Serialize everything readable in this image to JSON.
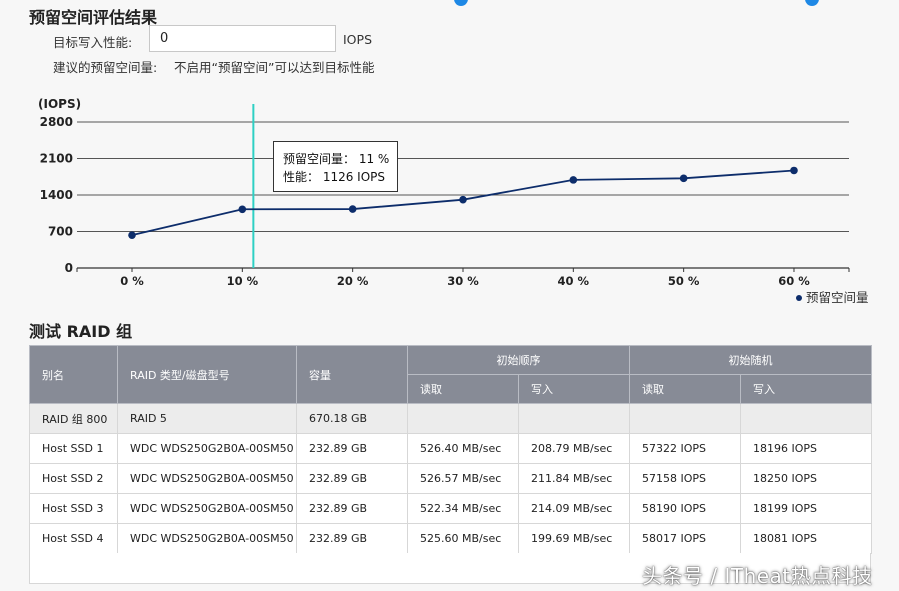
{
  "evaluation": {
    "title": "预留空间评估结果",
    "target_label": "目标写入性能:",
    "target_value": "0",
    "target_unit": "IOPS",
    "recommend_label": "建议的预留空间量:",
    "recommend_text": "不启用“预留空间”可以达到目标性能"
  },
  "chart_data": {
    "type": "line",
    "y_unit_label": "(IOPS)",
    "x": [
      "0 %",
      "10 %",
      "20 %",
      "30 %",
      "40 %",
      "50 %",
      "60 %"
    ],
    "series": [
      {
        "name": "预留空间量",
        "values": [
          630,
          1126,
          1130,
          1310,
          1690,
          1720,
          1870
        ]
      }
    ],
    "y_ticks": [
      "0",
      "700",
      "1400",
      "2100",
      "2800"
    ],
    "ylim": [
      0,
      2800
    ],
    "grid": true,
    "legend": "bottom-right",
    "series_color": "#0d2d6b",
    "cursor_color": "#2ed0c4",
    "tooltip": {
      "line1": "预留空间量： 11 %",
      "line2": "性能： 1126 IOPS"
    }
  },
  "raid_section": {
    "title": "测试 RAID 组",
    "headers": {
      "alias": "别名",
      "type_model": "RAID 类型/磁盘型号",
      "capacity": "容量",
      "initial_seq": "初始顺序",
      "initial_rand": "初始随机",
      "read": "读取",
      "write": "写入"
    },
    "rows": [
      {
        "alias": "RAID 组 800",
        "type_model": "RAID 5",
        "capacity": "670.18 GB",
        "seq_read": "",
        "seq_write": "",
        "rand_read": "",
        "rand_write": ""
      },
      {
        "alias": "Host SSD 1",
        "type_model": "WDC WDS250G2B0A-00SM50",
        "capacity": "232.89 GB",
        "seq_read": "526.40 MB/sec",
        "seq_write": "208.79 MB/sec",
        "rand_read": "57322 IOPS",
        "rand_write": "18196 IOPS"
      },
      {
        "alias": "Host SSD 2",
        "type_model": "WDC WDS250G2B0A-00SM50",
        "capacity": "232.89 GB",
        "seq_read": "526.57 MB/sec",
        "seq_write": "211.84 MB/sec",
        "rand_read": "57158 IOPS",
        "rand_write": "18250 IOPS"
      },
      {
        "alias": "Host SSD 3",
        "type_model": "WDC WDS250G2B0A-00SM50",
        "capacity": "232.89 GB",
        "seq_read": "522.34 MB/sec",
        "seq_write": "214.09 MB/sec",
        "rand_read": "58190 IOPS",
        "rand_write": "18199 IOPS"
      },
      {
        "alias": "Host SSD 4",
        "type_model": "WDC WDS250G2B0A-00SM50",
        "capacity": "232.89 GB",
        "seq_read": "525.60 MB/sec",
        "seq_write": "199.69 MB/sec",
        "rand_read": "58017 IOPS",
        "rand_write": "18081 IOPS"
      }
    ]
  },
  "watermark": "头条号 / ITheat热点科技"
}
